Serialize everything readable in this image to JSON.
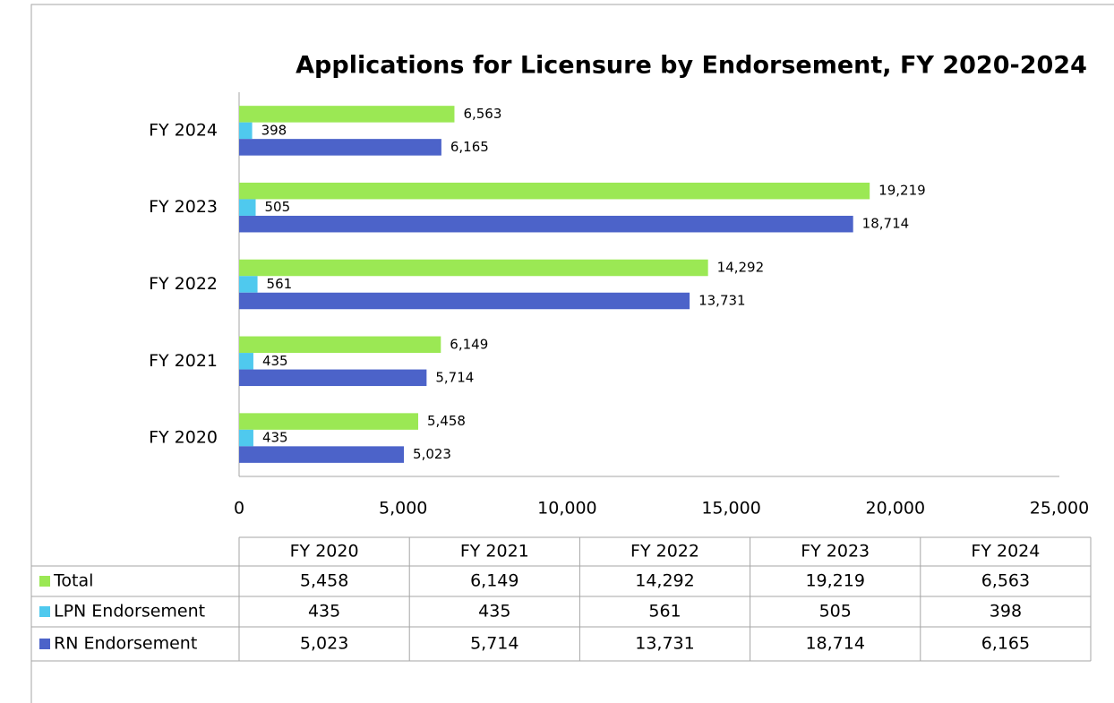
{
  "chart_data": {
    "type": "bar",
    "orientation": "horizontal",
    "title": "Applications for Licensure by Endorsement, FY 2020-2024",
    "categories": [
      "FY 2020",
      "FY 2021",
      "FY 2022",
      "FY 2023",
      "FY 2024"
    ],
    "series": [
      {
        "name": "Total",
        "color": "#9be854",
        "values": [
          5458,
          6149,
          14292,
          19219,
          6563
        ],
        "value_labels": [
          "5,458",
          "6,149",
          "14,292",
          "19,219",
          "6,563"
        ]
      },
      {
        "name": "LPN Endorsement",
        "color": "#4fc9ee",
        "values": [
          435,
          435,
          561,
          505,
          398
        ],
        "value_labels": [
          "435",
          "435",
          "561",
          "505",
          "398"
        ]
      },
      {
        "name": "RN Endorsement",
        "color": "#4c63c9",
        "values": [
          5023,
          5714,
          13731,
          18714,
          6165
        ],
        "value_labels": [
          "5,023",
          "5,714",
          "13,731",
          "18,714",
          "6,165"
        ]
      }
    ],
    "xlim": [
      0,
      25000
    ],
    "xticks": [
      0,
      {
        "value": 5000,
        "label": "5,000"
      },
      {
        "value": 10000,
        "label": "10,000"
      },
      {
        "value": 15000,
        "label": "15,000"
      },
      {
        "value": 20000,
        "label": "20,000"
      },
      {
        "value": 25000,
        "label": "25,000"
      }
    ],
    "grid": false
  }
}
